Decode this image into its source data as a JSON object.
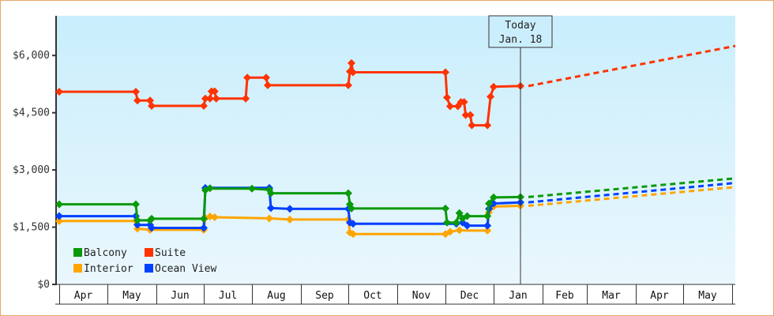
{
  "chart_data": {
    "type": "line",
    "title": "",
    "xlabel": "",
    "ylabel": "",
    "ylim": [
      0,
      7000
    ],
    "y_ticks": [
      "$0",
      "$1,500",
      "$3,000",
      "$4,500",
      "$6,000"
    ],
    "y_tick_values": [
      0,
      1500,
      3000,
      4500,
      6000
    ],
    "x_ticks": [
      "Apr",
      "May",
      "Jun",
      "Jul",
      "Aug",
      "Sep",
      "Oct",
      "Nov",
      "Dec",
      "Jan",
      "Feb",
      "Mar",
      "Apr",
      "May"
    ],
    "grid": false,
    "legend_position": "lower-left inside",
    "today_marker": {
      "line1": "Today",
      "line2": "Jan. 18"
    },
    "legend": [
      {
        "name": "Balcony",
        "color": "#0a9a0a"
      },
      {
        "name": "Suite",
        "color": "#ff3300"
      },
      {
        "name": "Interior",
        "color": "#ffa500"
      },
      {
        "name": "Ocean View",
        "color": "#0040ff"
      }
    ],
    "series": [
      {
        "name": "Suite",
        "color": "#ff3300",
        "historical": [
          [
            "Apr 1",
            5050
          ],
          [
            "May 19",
            5050
          ],
          [
            "May 20",
            4820
          ],
          [
            "May 28",
            4820
          ],
          [
            "May 29",
            4680
          ],
          [
            "Jul 1",
            4680
          ],
          [
            "Jul 2",
            4870
          ],
          [
            "Jul 5",
            4870
          ],
          [
            "Jul 6",
            5060
          ],
          [
            "Jul 8",
            5060
          ],
          [
            "Jul 9",
            4870
          ],
          [
            "Jul 28",
            4870
          ],
          [
            "Jul 29",
            5420
          ],
          [
            "Aug 10",
            5420
          ],
          [
            "Aug 11",
            5220
          ],
          [
            "Oct 1",
            5220
          ],
          [
            "Oct 2",
            5580
          ],
          [
            "Oct 3",
            5800
          ],
          [
            "Oct 4",
            5560
          ],
          [
            "Dec 1",
            5560
          ],
          [
            "Dec 2",
            4900
          ],
          [
            "Dec 4",
            4670
          ],
          [
            "Dec 9",
            4670
          ],
          [
            "Dec 11",
            4780
          ],
          [
            "Dec 13",
            4780
          ],
          [
            "Dec 14",
            4440
          ],
          [
            "Dec 17",
            4440
          ],
          [
            "Dec 18",
            4170
          ],
          [
            "Dec 28",
            4170
          ],
          [
            "Dec 30",
            4920
          ],
          [
            "Jan 1",
            5180
          ],
          [
            "Jan 18",
            5200
          ]
        ],
        "forecast": [
          [
            "Jan 18",
            5200
          ],
          [
            "May 31",
            6250
          ]
        ]
      },
      {
        "name": "Balcony",
        "color": "#0a9a0a",
        "historical": [
          [
            "Apr 1",
            2100
          ],
          [
            "May 19",
            2100
          ],
          [
            "May 20",
            1680
          ],
          [
            "May 28",
            1680
          ],
          [
            "May 29",
            1720
          ],
          [
            "Jul 1",
            1720
          ],
          [
            "Jul 2",
            2470
          ],
          [
            "Jul 5",
            2520
          ],
          [
            "Jul 8",
            2510
          ],
          [
            "Aug 1",
            2510
          ],
          [
            "Aug 12",
            2480
          ],
          [
            "Aug 13",
            2390
          ],
          [
            "Oct 1",
            2390
          ],
          [
            "Oct 2",
            2100
          ],
          [
            "Oct 3",
            1990
          ],
          [
            "Dec 1",
            1990
          ],
          [
            "Dec 2",
            1620
          ],
          [
            "Dec 8",
            1620
          ],
          [
            "Dec 10",
            1870
          ],
          [
            "Dec 12",
            1730
          ],
          [
            "Dec 15",
            1790
          ],
          [
            "Dec 28",
            1790
          ],
          [
            "Dec 29",
            2120
          ],
          [
            "Jan 1",
            2280
          ],
          [
            "Jan 18",
            2290
          ]
        ],
        "forecast": [
          [
            "Jan 18",
            2290
          ],
          [
            "May 31",
            2780
          ]
        ]
      },
      {
        "name": "Ocean View",
        "color": "#0040ff",
        "historical": [
          [
            "Apr 1",
            1790
          ],
          [
            "May 19",
            1790
          ],
          [
            "May 20",
            1560
          ],
          [
            "May 28",
            1560
          ],
          [
            "May 29",
            1480
          ],
          [
            "Jul 1",
            1480
          ],
          [
            "Jul 2",
            2530
          ],
          [
            "Aug 12",
            2530
          ],
          [
            "Aug 13",
            2000
          ],
          [
            "Aug 25",
            1980
          ],
          [
            "Oct 1",
            1980
          ],
          [
            "Oct 2",
            1620
          ],
          [
            "Oct 4",
            1590
          ],
          [
            "Dec 1",
            1590
          ],
          [
            "Dec 8",
            1590
          ],
          [
            "Dec 12",
            1620
          ],
          [
            "Dec 15",
            1540
          ],
          [
            "Dec 28",
            1540
          ],
          [
            "Dec 29",
            1980
          ],
          [
            "Jan 1",
            2120
          ],
          [
            "Jan 18",
            2150
          ]
        ],
        "forecast": [
          [
            "Jan 18",
            2150
          ],
          [
            "May 31",
            2660
          ]
        ]
      },
      {
        "name": "Interior",
        "color": "#ffa500",
        "historical": [
          [
            "Apr 1",
            1660
          ],
          [
            "May 19",
            1660
          ],
          [
            "May 20",
            1460
          ],
          [
            "May 28",
            1430
          ],
          [
            "Jul 1",
            1430
          ],
          [
            "Jul 2",
            1740
          ],
          [
            "Jul 5",
            1780
          ],
          [
            "Jul 8",
            1760
          ],
          [
            "Aug 12",
            1730
          ],
          [
            "Aug 25",
            1700
          ],
          [
            "Oct 1",
            1700
          ],
          [
            "Oct 2",
            1360
          ],
          [
            "Oct 4",
            1320
          ],
          [
            "Dec 1",
            1320
          ],
          [
            "Dec 4",
            1380
          ],
          [
            "Dec 10",
            1420
          ],
          [
            "Dec 15",
            1410
          ],
          [
            "Dec 28",
            1410
          ],
          [
            "Dec 29",
            1890
          ],
          [
            "Jan 1",
            2040
          ],
          [
            "Jan 18",
            2060
          ]
        ],
        "forecast": [
          [
            "Jan 18",
            2060
          ],
          [
            "May 31",
            2550
          ]
        ]
      }
    ]
  }
}
